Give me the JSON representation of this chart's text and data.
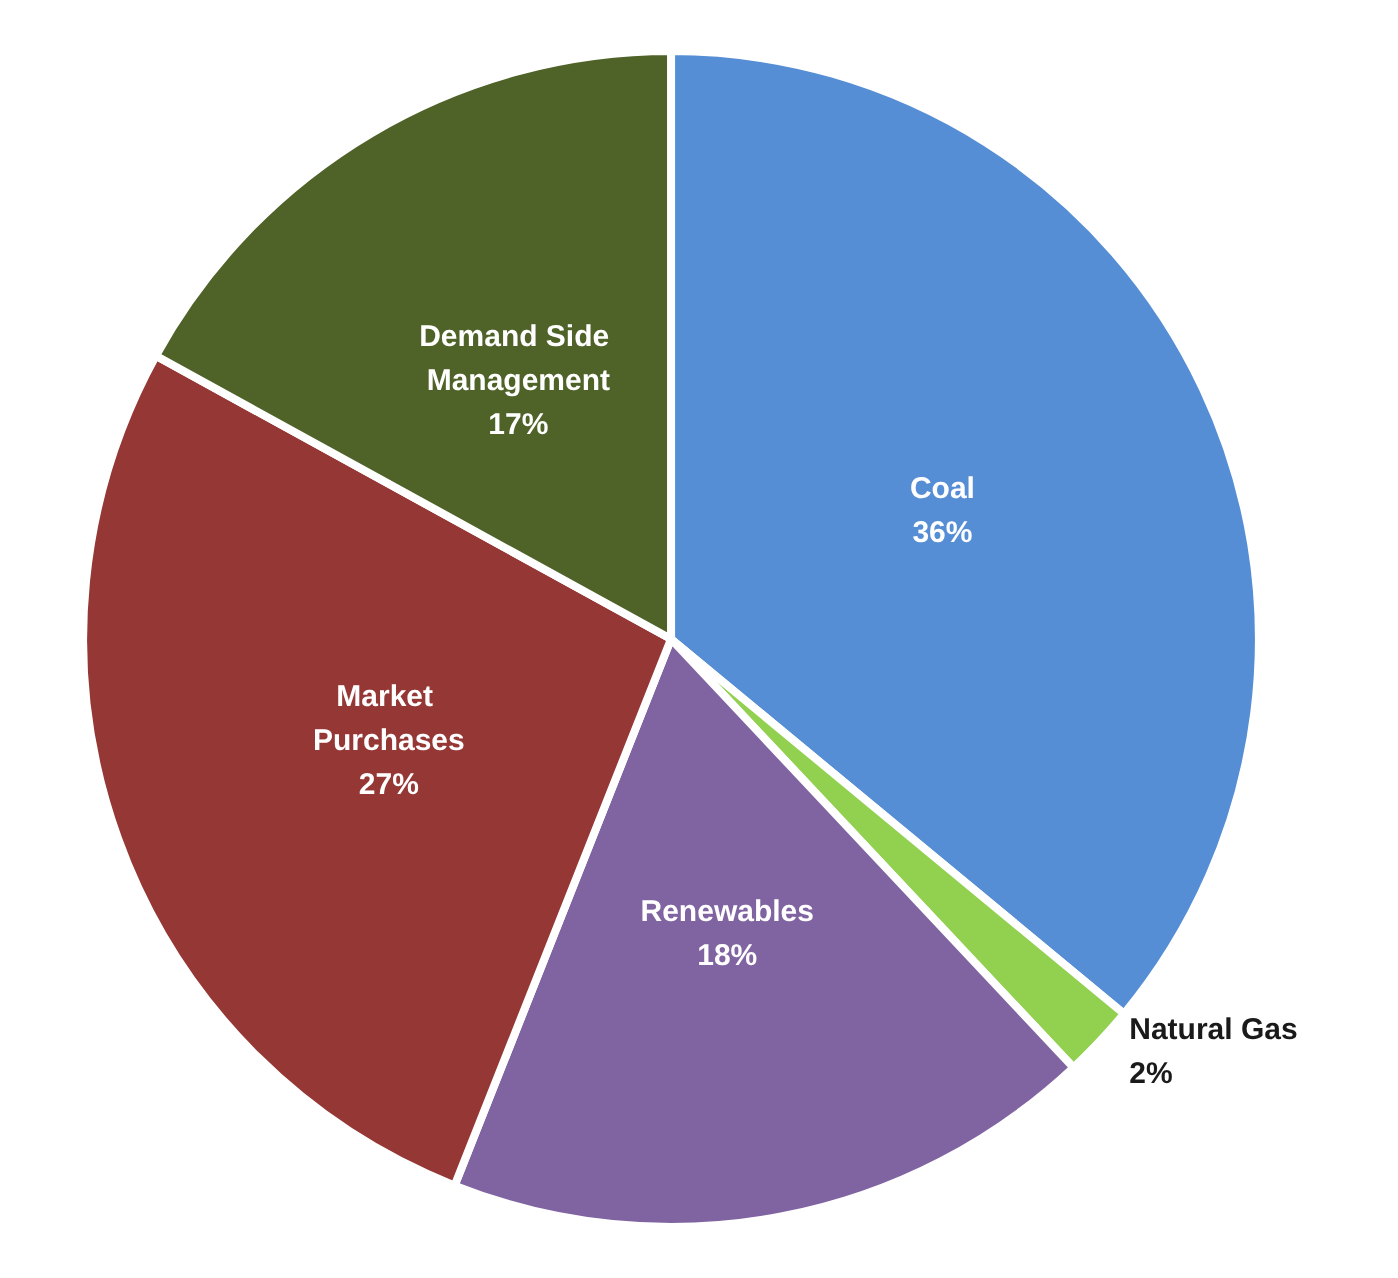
{
  "chart_data": {
    "type": "pie",
    "categories": [
      "Coal",
      "Natural Gas",
      "Renewables",
      "Market Purchases",
      "Demand Side Management"
    ],
    "values": [
      36,
      2,
      18,
      27,
      17
    ],
    "value_labels": [
      "36%",
      "2%",
      "18%",
      "27%",
      "17%"
    ],
    "colors": [
      "#558ed5",
      "#92d050",
      "#8064a2",
      "#953735",
      "#4f6228"
    ],
    "legend": false
  }
}
